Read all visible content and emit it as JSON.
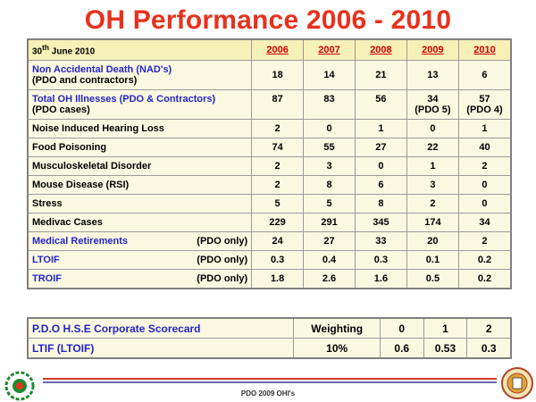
{
  "title": "OH Performance 2006 - 2010",
  "main_table": {
    "header": {
      "date": "30th June 2010",
      "date_day": "30",
      "date_suffix": "th",
      "date_rest": " June 2010",
      "years": [
        "2006",
        "2007",
        "2008",
        "2009",
        "2010"
      ]
    },
    "rows": [
      {
        "label": "Non Accidental Death (NAD's)",
        "sub": "(PDO and contractors)",
        "values": [
          "18",
          "14",
          "21",
          "13",
          "6"
        ]
      },
      {
        "label": "Total OH Illnesses (PDO & Contractors)",
        "sub": "(PDO cases)",
        "values": [
          "87",
          "83",
          "56",
          "34",
          "57"
        ],
        "subvalues": [
          "",
          "",
          "",
          "(PDO 5)",
          "(PDO 4)"
        ]
      },
      {
        "label": "Noise Induced Hearing Loss",
        "values": [
          "2",
          "0",
          "1",
          "0",
          "1"
        ]
      },
      {
        "label": "Food Poisoning",
        "values": [
          "74",
          "55",
          "27",
          "22",
          "40"
        ]
      },
      {
        "label": "Musculoskeletal Disorder",
        "values": [
          "2",
          "3",
          "0",
          "1",
          "2"
        ]
      },
      {
        "label": "Mouse Disease (RSI)",
        "values": [
          "2",
          "8",
          "6",
          "3",
          "0"
        ]
      },
      {
        "label": "Stress",
        "values": [
          "5",
          "5",
          "8",
          "2",
          "0"
        ]
      },
      {
        "label": "Medivac Cases",
        "values": [
          "229",
          "291",
          "345",
          "174",
          "34"
        ]
      },
      {
        "label": "Medical Retirements",
        "note": "(PDO only)",
        "values": [
          "24",
          "27",
          "33",
          "20",
          "2"
        ]
      },
      {
        "label": "LTOIF",
        "note": "(PDO only)",
        "values": [
          "0.3",
          "0.4",
          "0.3",
          "0.1",
          "0.2"
        ]
      },
      {
        "label": "TROIF",
        "note": "(PDO only)",
        "values": [
          "1.8",
          "2.6",
          "1.6",
          "0.5",
          "0.2"
        ]
      }
    ]
  },
  "scorecard": {
    "header": {
      "label": "P.D.O H.S.E Corporate Scorecard",
      "weighting": "Weighting",
      "s0": "0",
      "s1": "1",
      "s2": "2"
    },
    "row": {
      "label": "LTIF (LTOIF)",
      "weighting": "10%",
      "s0": "0.6",
      "s1": "0.53",
      "s2": "0.3"
    }
  },
  "footer": "PDO 2009 OHI's",
  "colors": {
    "title": "#e8311d",
    "year": "#d00000",
    "label": "#2424c8",
    "table_bg": "#fbf8e1",
    "header_bg": "#f8f1b7"
  }
}
